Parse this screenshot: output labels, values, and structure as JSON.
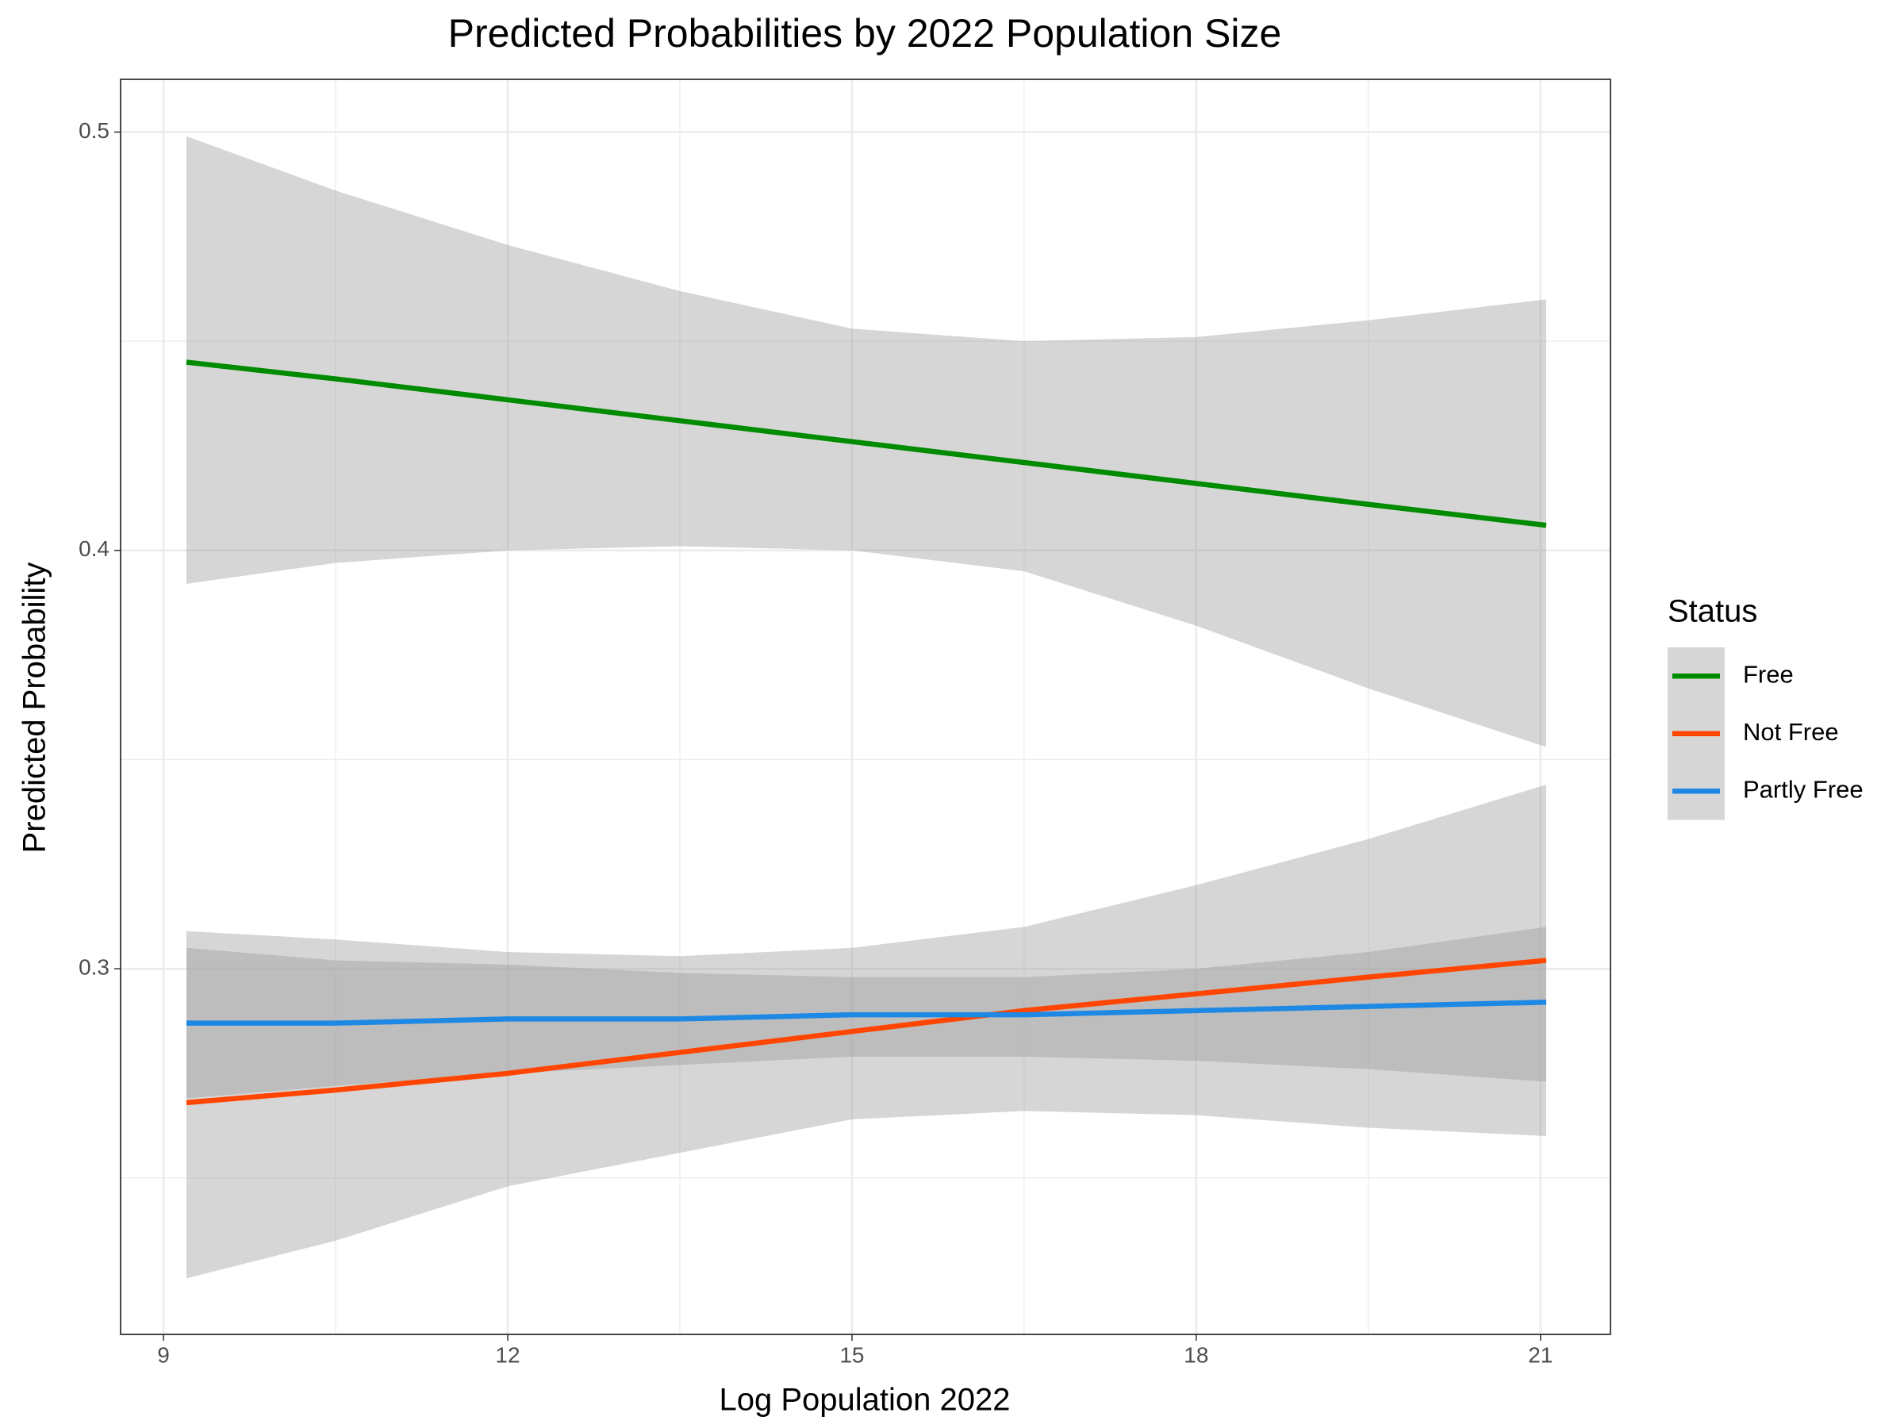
{
  "chart_data": {
    "type": "line",
    "title": "Predicted Probabilities by 2022 Population Size",
    "x_label": "Log Population 2022",
    "y_label": "Predicted Probability",
    "legend_title": "Status",
    "legend_position": "right",
    "x": [
      9.2,
      10.5,
      12,
      13.5,
      15,
      16.5,
      18,
      19.5,
      21.05
    ],
    "series": [
      {
        "name": "Free",
        "color": "#008b00",
        "values": [
          0.445,
          0.441,
          0.436,
          0.431,
          0.426,
          0.421,
          0.416,
          0.411,
          0.406
        ],
        "lower": [
          0.392,
          0.397,
          0.4,
          0.401,
          0.4,
          0.395,
          0.382,
          0.367,
          0.353
        ],
        "upper": [
          0.499,
          0.486,
          0.473,
          0.462,
          0.453,
          0.45,
          0.451,
          0.455,
          0.46
        ]
      },
      {
        "name": "Not Free",
        "color": "#ff4500",
        "values": [
          0.268,
          0.271,
          0.275,
          0.28,
          0.285,
          0.29,
          0.294,
          0.298,
          0.302
        ],
        "lower": [
          0.226,
          0.235,
          0.248,
          0.256,
          0.264,
          0.266,
          0.265,
          0.262,
          0.26
        ],
        "upper": [
          0.309,
          0.307,
          0.304,
          0.303,
          0.305,
          0.31,
          0.32,
          0.331,
          0.344
        ]
      },
      {
        "name": "Partly Free",
        "color": "#1e88e5",
        "values": [
          0.287,
          0.287,
          0.288,
          0.288,
          0.289,
          0.289,
          0.29,
          0.291,
          0.292
        ],
        "lower": [
          0.269,
          0.272,
          0.275,
          0.277,
          0.279,
          0.279,
          0.278,
          0.276,
          0.273
        ],
        "upper": [
          0.305,
          0.302,
          0.301,
          0.299,
          0.298,
          0.298,
          0.3,
          0.304,
          0.31
        ]
      }
    ],
    "band_color": "#999999",
    "xlim": [
      8.626,
      21.61
    ],
    "ylim": [
      0.2126,
      0.5126
    ],
    "xticks": [
      9,
      12,
      15,
      18,
      21
    ],
    "yticks": [
      0.3,
      0.4,
      0.5
    ],
    "xminor": [
      10.5,
      13.5,
      16.5,
      19.5
    ],
    "yminor": [
      0.25,
      0.35,
      0.45
    ],
    "grid": true
  }
}
